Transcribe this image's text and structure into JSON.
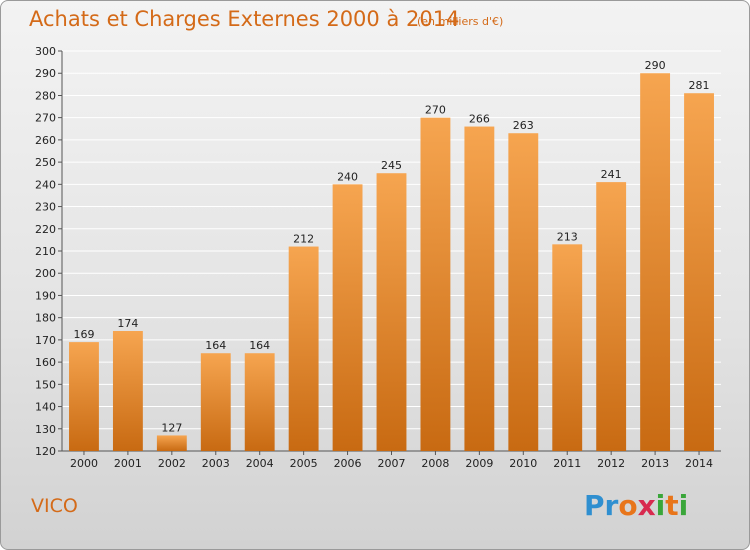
{
  "chart_data": {
    "type": "bar",
    "title": "Achats et Charges Externes 2000 à 2014",
    "subtitle": "(en milliers d'€)",
    "categories": [
      "2000",
      "2001",
      "2002",
      "2003",
      "2004",
      "2005",
      "2006",
      "2007",
      "2008",
      "2009",
      "2010",
      "2011",
      "2012",
      "2013",
      "2014"
    ],
    "values": [
      169,
      174,
      127,
      164,
      164,
      212,
      240,
      245,
      270,
      266,
      263,
      213,
      241,
      290,
      281
    ],
    "ylim": [
      120,
      300
    ],
    "yticks": [
      120,
      130,
      140,
      150,
      160,
      170,
      180,
      190,
      200,
      210,
      220,
      230,
      240,
      250,
      260,
      270,
      280,
      290,
      300
    ],
    "grid": true,
    "bar_color_top": "#f6a550",
    "bar_color_bottom": "#c86a12"
  },
  "footer": {
    "commune": "VICO",
    "logo_letters": [
      "P",
      "r",
      "o",
      "x",
      "i",
      "t",
      "i"
    ],
    "logo_colors": [
      "#2f8fd0",
      "#2f8fd0",
      "#e8751a",
      "#d82a4f",
      "#3aa63a",
      "#e8751a",
      "#3aa63a"
    ]
  },
  "text_color": "#d46a18"
}
